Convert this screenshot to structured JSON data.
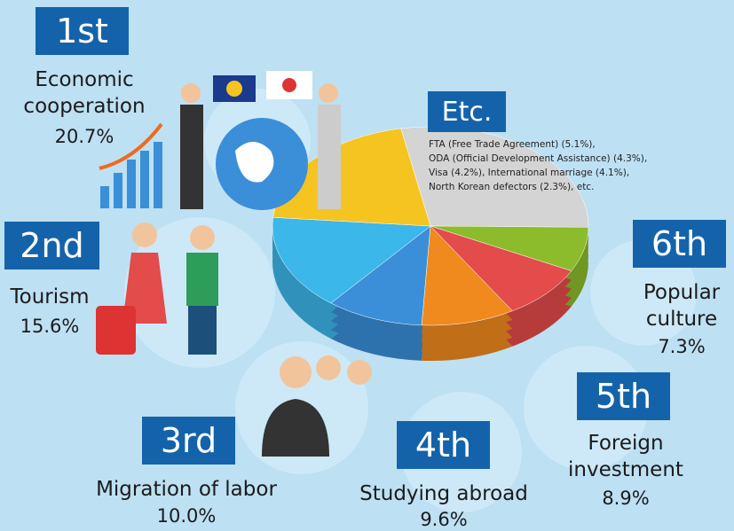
{
  "chart_data": {
    "type": "pie",
    "ranks": [
      "1st",
      "2nd",
      "3rd",
      "4th",
      "5th",
      "6th",
      "Etc."
    ],
    "categories": [
      "Economic cooperation",
      "Tourism",
      "Migration of labor",
      "Studying abroad",
      "Foreign investment",
      "Popular culture",
      null
    ],
    "values": [
      20.7,
      15.6,
      10.0,
      9.6,
      8.9,
      7.3,
      28.3
    ],
    "value_labels": [
      "20.7%",
      "15.6%",
      "10.0%",
      "9.6%",
      "8.9%",
      "7.3%",
      null
    ],
    "colors": [
      "#f5c420",
      "#3cb7ea",
      "#3a8fd8",
      "#f08a1e",
      "#e44b4b",
      "#8cbb2c",
      "#d4d4d4"
    ],
    "etc_note": [
      "FTA (Free Trade Agreement) (5.1%),",
      "ODA (Official Development Assistance) (4.3%),",
      "Visa (4.2%), International marriage (4.1%),",
      "North Korean defectors (2.3%), etc."
    ]
  }
}
